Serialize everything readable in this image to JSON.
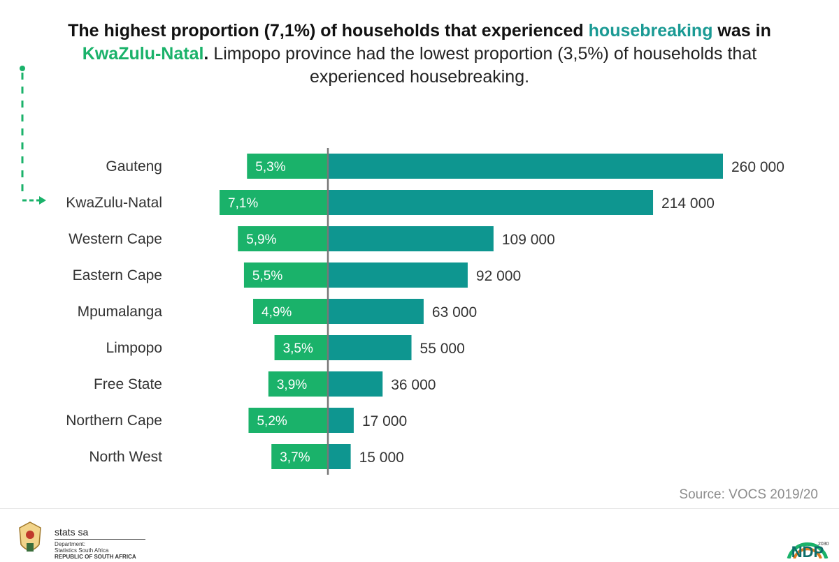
{
  "headline": {
    "part1": "The highest proportion (7,1%) of households that experienced ",
    "highlight1": "housebreaking",
    "part2": " was in",
    "highlight2": "KwaZulu-Natal",
    "part3": ".",
    "part4": " Limpopo province had the lowest proportion (3,5%) of households that",
    "line3": "experienced housebreaking."
  },
  "chart_data": {
    "type": "bar",
    "categories": [
      "Gauteng",
      "KwaZulu-Natal",
      "Western Cape",
      "Eastern Cape",
      "Mpumalanga",
      "Limpopo",
      "Free State",
      "Northern Cape",
      "North West"
    ],
    "series": [
      {
        "values": [
          5.3,
          7.1,
          5.9,
          5.5,
          4.9,
          3.5,
          3.9,
          5.2,
          3.7
        ],
        "labels": [
          "5,3%",
          "7,1%",
          "5,9%",
          "5,5%",
          "4,9%",
          "3,5%",
          "3,9%",
          "5,2%",
          "3,7%"
        ],
        "color": "#1ab26a"
      },
      {
        "values": [
          260000,
          214000,
          109000,
          92000,
          63000,
          55000,
          36000,
          17000,
          15000
        ],
        "labels": [
          "260 000",
          "214 000",
          "109 000",
          "92 000",
          "63 000",
          "55 000",
          "36 000",
          "17 000",
          "15 000"
        ],
        "color": "#0e9690"
      }
    ],
    "highlight_category": "KwaZulu-Natal"
  },
  "source": "Source: VOCS 2019/20",
  "footer": {
    "brand": "stats sa",
    "dept_line1": "Department:",
    "dept_line2": "Statistics South Africa",
    "dept_line3": "REPUBLIC OF SOUTH AFRICA",
    "ndp_logo": "NDP",
    "ndp_year": "2030"
  },
  "colors": {
    "green": "#1ab26a",
    "teal": "#0e9690",
    "axis": "#777777",
    "label": "#333333"
  }
}
